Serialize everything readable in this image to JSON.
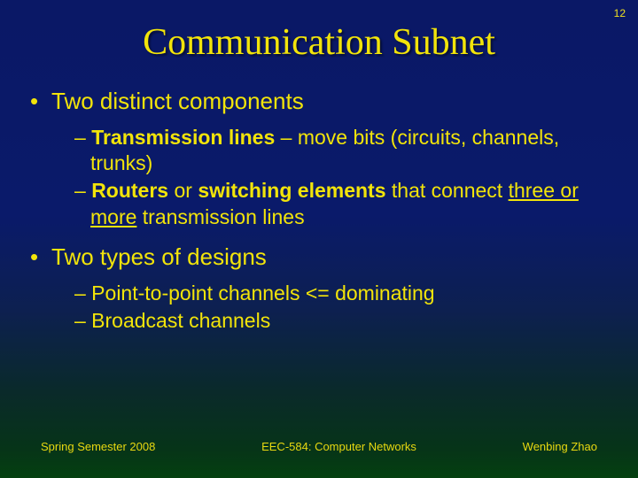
{
  "colors": {
    "title": "#f2e40a",
    "body": "#f2e40a",
    "pageNumber": "#f0e020",
    "footer": "#e8d810"
  },
  "pageNumber": "12",
  "title": "Communication Subnet",
  "bullets": [
    {
      "level": 1,
      "runs": [
        {
          "text": "Two distinct components"
        }
      ]
    },
    {
      "level": 2,
      "runs": [
        {
          "text": "– "
        },
        {
          "text": "Transmission lines",
          "bold": true
        },
        {
          "text": " – move bits (circuits, channels, trunks)"
        }
      ]
    },
    {
      "level": 2,
      "runs": [
        {
          "text": "– "
        },
        {
          "text": "Routers",
          "bold": true
        },
        {
          "text": " or "
        },
        {
          "text": "switching elements",
          "bold": true
        },
        {
          "text": " that connect "
        },
        {
          "text": "three or more",
          "underline": true
        },
        {
          "text": " transmission lines"
        }
      ]
    },
    {
      "level": 1,
      "spacerBefore": true,
      "runs": [
        {
          "text": "Two types of designs"
        }
      ]
    },
    {
      "level": 2,
      "runs": [
        {
          "text": "– Point-to-point channels <= dominating"
        }
      ]
    },
    {
      "level": 2,
      "runs": [
        {
          "text": "– Broadcast channels"
        }
      ]
    }
  ],
  "footer": {
    "left": "Spring Semester 2008",
    "center": "EEC-584: Computer Networks",
    "right": "Wenbing Zhao"
  }
}
